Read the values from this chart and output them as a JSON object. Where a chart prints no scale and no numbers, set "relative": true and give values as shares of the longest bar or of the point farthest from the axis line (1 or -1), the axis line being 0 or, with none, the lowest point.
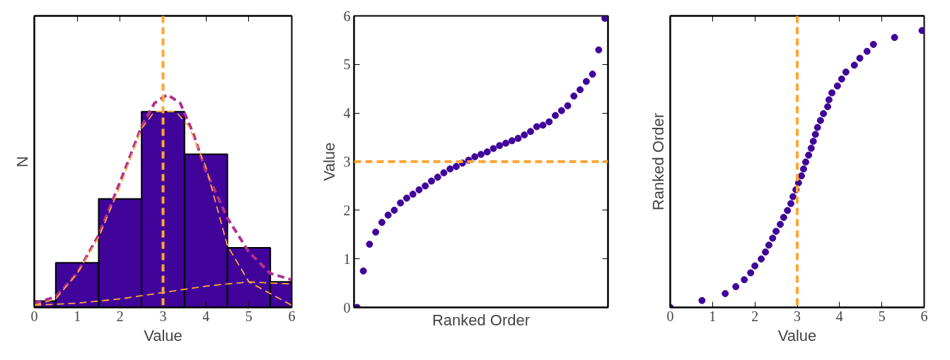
{
  "chart_data": [
    {
      "type": "histogram",
      "xlabel": "Value",
      "ylabel": "N",
      "relative": true,
      "xlim": [
        0,
        6
      ],
      "xticks": [
        0,
        1,
        2,
        3,
        4,
        5,
        6
      ],
      "grid": false,
      "series": [
        {
          "type": "histogram",
          "color": "#40049a",
          "bins": [
            0,
            0.5,
            1.5,
            2.5,
            3.5,
            4.5,
            5.5,
            6
          ],
          "values": [
            0.03,
            0.21,
            0.51,
            0.92,
            0.72,
            0.28,
            0.12
          ]
        },
        {
          "type": "line",
          "color": "#b0308f",
          "line_style": "dashed",
          "x": [
            0,
            0.5,
            1,
            1.5,
            2,
            2.5,
            2.8,
            3.1,
            3.4,
            3.7,
            4,
            4.5,
            5,
            5.5,
            6
          ],
          "values": [
            0.02,
            0.05,
            0.16,
            0.34,
            0.59,
            0.85,
            0.96,
            1.0,
            0.96,
            0.82,
            0.64,
            0.42,
            0.26,
            0.16,
            0.13
          ]
        },
        {
          "type": "line",
          "color": "#ffa632",
          "line_style": "dashed",
          "x": [
            0,
            0.5,
            1,
            1.5,
            2,
            2.5,
            2.8,
            3.3,
            3.6,
            4,
            4.5,
            5,
            6
          ],
          "values": [
            0.01,
            0.04,
            0.16,
            0.33,
            0.57,
            0.84,
            0.92,
            0.92,
            0.85,
            0.66,
            0.29,
            0.12,
            0.01
          ]
        },
        {
          "type": "line",
          "color": "#ffa632",
          "line_style": "dashed",
          "x": [
            0,
            1,
            2,
            3,
            4,
            5,
            6
          ],
          "values": [
            0.01,
            0.02,
            0.04,
            0.07,
            0.1,
            0.12,
            0.11
          ]
        }
      ],
      "ref_lines": [
        {
          "axis": "x",
          "value": 3,
          "color": "#ffa632",
          "line_style": "dashed"
        }
      ]
    },
    {
      "type": "scatter",
      "xlabel": "Ranked Order",
      "ylabel": "Value",
      "marker": "circle",
      "color": "#40049a",
      "ylim": [
        0,
        6
      ],
      "yticks": [
        0,
        1,
        2,
        3,
        4,
        5,
        6
      ],
      "grid": false,
      "tick_labels": "y",
      "categories": [
        null,
        null,
        null,
        null,
        null,
        null,
        null,
        null,
        null,
        null,
        null,
        null,
        null,
        null,
        null,
        null,
        null,
        null,
        null,
        null,
        null,
        null,
        null,
        null,
        null,
        null,
        null,
        null,
        null,
        null,
        null,
        null,
        null,
        null,
        null,
        null,
        null,
        null,
        null,
        null,
        null
      ],
      "values": [
        0.0,
        0.75,
        1.3,
        1.55,
        1.75,
        1.9,
        2.0,
        2.15,
        2.25,
        2.33,
        2.42,
        2.5,
        2.6,
        2.68,
        2.77,
        2.85,
        2.9,
        2.97,
        3.03,
        3.1,
        3.15,
        3.2,
        3.27,
        3.33,
        3.38,
        3.43,
        3.48,
        3.55,
        3.62,
        3.72,
        3.75,
        3.82,
        3.95,
        4.05,
        4.15,
        4.35,
        4.48,
        4.65,
        4.8,
        5.3,
        5.95
      ],
      "ref_lines": [
        {
          "axis": "y",
          "value": 3,
          "color": "#ffa632",
          "line_style": "dashed"
        }
      ]
    },
    {
      "type": "scatter",
      "xlabel": "Value",
      "ylabel": "Ranked Order",
      "marker": "circle",
      "color": "#40049a",
      "relative": true,
      "xlim": [
        0,
        6
      ],
      "xticks": [
        0,
        1,
        2,
        3,
        4,
        5,
        6
      ],
      "grid": false,
      "tick_labels": "x",
      "x": [
        0.0,
        0.75,
        1.3,
        1.55,
        1.75,
        1.9,
        2.0,
        2.15,
        2.25,
        2.33,
        2.42,
        2.5,
        2.6,
        2.68,
        2.77,
        2.85,
        2.9,
        2.97,
        3.03,
        3.1,
        3.15,
        3.2,
        3.27,
        3.33,
        3.38,
        3.43,
        3.48,
        3.55,
        3.62,
        3.72,
        3.75,
        3.82,
        3.95,
        4.05,
        4.15,
        4.35,
        4.48,
        4.65,
        4.8,
        5.3,
        5.95
      ],
      "values": [
        0,
        0.025,
        0.05,
        0.075,
        0.1,
        0.125,
        0.15,
        0.175,
        0.2,
        0.225,
        0.25,
        0.275,
        0.3,
        0.325,
        0.35,
        0.375,
        0.4,
        0.425,
        0.45,
        0.475,
        0.5,
        0.525,
        0.55,
        0.575,
        0.6,
        0.625,
        0.65,
        0.675,
        0.7,
        0.725,
        0.75,
        0.775,
        0.8,
        0.825,
        0.85,
        0.875,
        0.9,
        0.925,
        0.95,
        0.975,
        1
      ],
      "ref_lines": [
        {
          "axis": "x",
          "value": 3,
          "color": "#ffa632",
          "line_style": "dashed"
        }
      ]
    }
  ]
}
